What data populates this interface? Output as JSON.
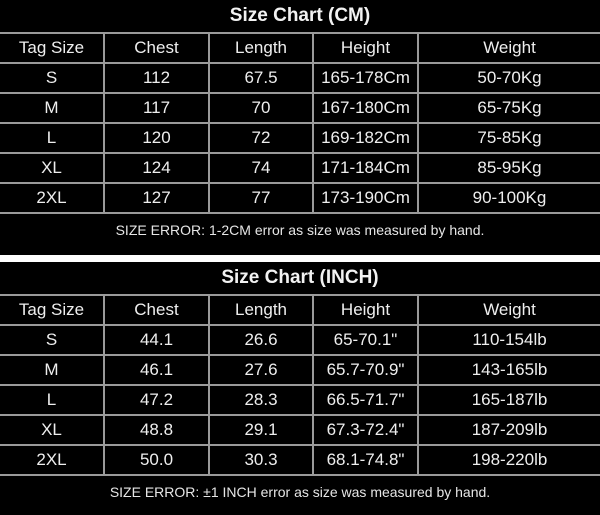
{
  "colors": {
    "background": "#000000",
    "text": "#eeeeee",
    "grid": "#9a9a9a",
    "separator": "#ffffff"
  },
  "charts": [
    {
      "title": "Size Chart (CM)",
      "headers": [
        "Tag Size",
        "Chest",
        "Length",
        "Height",
        "Weight"
      ],
      "rows": [
        [
          "S",
          "112",
          "67.5",
          "165-178Cm",
          "50-70Kg"
        ],
        [
          "M",
          "117",
          "70",
          "167-180Cm",
          "65-75Kg"
        ],
        [
          "L",
          "120",
          "72",
          "169-182Cm",
          "75-85Kg"
        ],
        [
          "XL",
          "124",
          "74",
          "171-184Cm",
          "85-95Kg"
        ],
        [
          "2XL",
          "127",
          "77",
          "173-190Cm",
          "90-100Kg"
        ]
      ],
      "note": "SIZE ERROR: 1-2CM error as size was measured by hand."
    },
    {
      "title": "Size Chart (INCH)",
      "headers": [
        "Tag Size",
        "Chest",
        "Length",
        "Height",
        "Weight"
      ],
      "rows": [
        [
          "S",
          "44.1",
          "26.6",
          "65-70.1\"",
          "110-154lb"
        ],
        [
          "M",
          "46.1",
          "27.6",
          "65.7-70.9\"",
          "143-165lb"
        ],
        [
          "L",
          "47.2",
          "28.3",
          "66.5-71.7\"",
          "165-187lb"
        ],
        [
          "XL",
          "48.8",
          "29.1",
          "67.3-72.4\"",
          "187-209lb"
        ],
        [
          "2XL",
          "50.0",
          "30.3",
          "68.1-74.8\"",
          "198-220lb"
        ]
      ],
      "note": "SIZE ERROR: ±1 INCH error as size was measured by hand."
    }
  ]
}
